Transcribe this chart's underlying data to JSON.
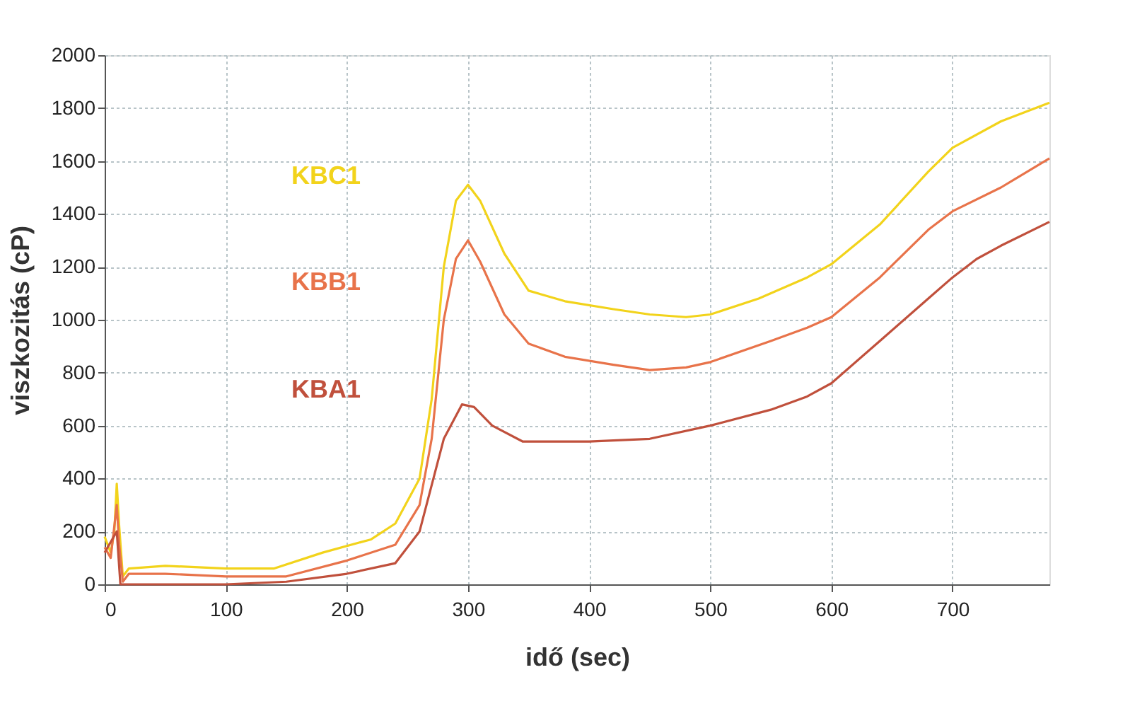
{
  "chart_data": {
    "type": "line",
    "xlabel": "idő (sec)",
    "ylabel": "viszkozitás (cP)",
    "xlim": [
      0,
      780
    ],
    "xticks": [
      0,
      100,
      200,
      300,
      400,
      500,
      600,
      700
    ],
    "ylim": [
      0,
      2000
    ],
    "yticks": [
      0,
      200,
      400,
      600,
      800,
      1000,
      1200,
      1400,
      1600,
      1800,
      2000
    ],
    "grid": true,
    "legend": false,
    "line_style": "solid",
    "marker": "none",
    "series": [
      {
        "name": "KBC1",
        "color": "#f2d31b",
        "x": [
          0,
          5,
          8,
          10,
          12,
          15,
          20,
          50,
          100,
          140,
          180,
          220,
          240,
          260,
          270,
          280,
          290,
          300,
          310,
          330,
          350,
          380,
          420,
          450,
          480,
          500,
          540,
          580,
          600,
          640,
          680,
          700,
          740,
          780
        ],
        "values": [
          180,
          120,
          200,
          380,
          220,
          30,
          60,
          70,
          60,
          60,
          120,
          170,
          230,
          400,
          700,
          1200,
          1450,
          1510,
          1450,
          1250,
          1110,
          1070,
          1040,
          1020,
          1010,
          1020,
          1080,
          1160,
          1210,
          1360,
          1560,
          1650,
          1750,
          1820
        ]
      },
      {
        "name": "KBB1",
        "color": "#e8734a",
        "x": [
          0,
          5,
          10,
          12,
          15,
          20,
          50,
          100,
          150,
          200,
          240,
          260,
          270,
          280,
          290,
          300,
          310,
          330,
          350,
          380,
          420,
          450,
          480,
          500,
          550,
          580,
          600,
          640,
          680,
          700,
          740,
          780
        ],
        "values": [
          140,
          100,
          300,
          150,
          10,
          40,
          40,
          30,
          30,
          90,
          150,
          300,
          550,
          1000,
          1230,
          1300,
          1220,
          1020,
          910,
          860,
          830,
          810,
          820,
          840,
          920,
          970,
          1010,
          1160,
          1340,
          1410,
          1500,
          1610
        ]
      },
      {
        "name": "KBA1",
        "color": "#c0503c",
        "x": [
          0,
          10,
          13,
          20,
          100,
          150,
          200,
          240,
          260,
          280,
          295,
          305,
          320,
          345,
          400,
          450,
          500,
          550,
          580,
          600,
          640,
          680,
          700,
          720,
          740,
          780
        ],
        "values": [
          120,
          200,
          0,
          0,
          0,
          10,
          40,
          80,
          200,
          550,
          680,
          670,
          600,
          540,
          540,
          550,
          600,
          660,
          710,
          760,
          920,
          1080,
          1160,
          1230,
          1280,
          1370
        ]
      }
    ]
  }
}
